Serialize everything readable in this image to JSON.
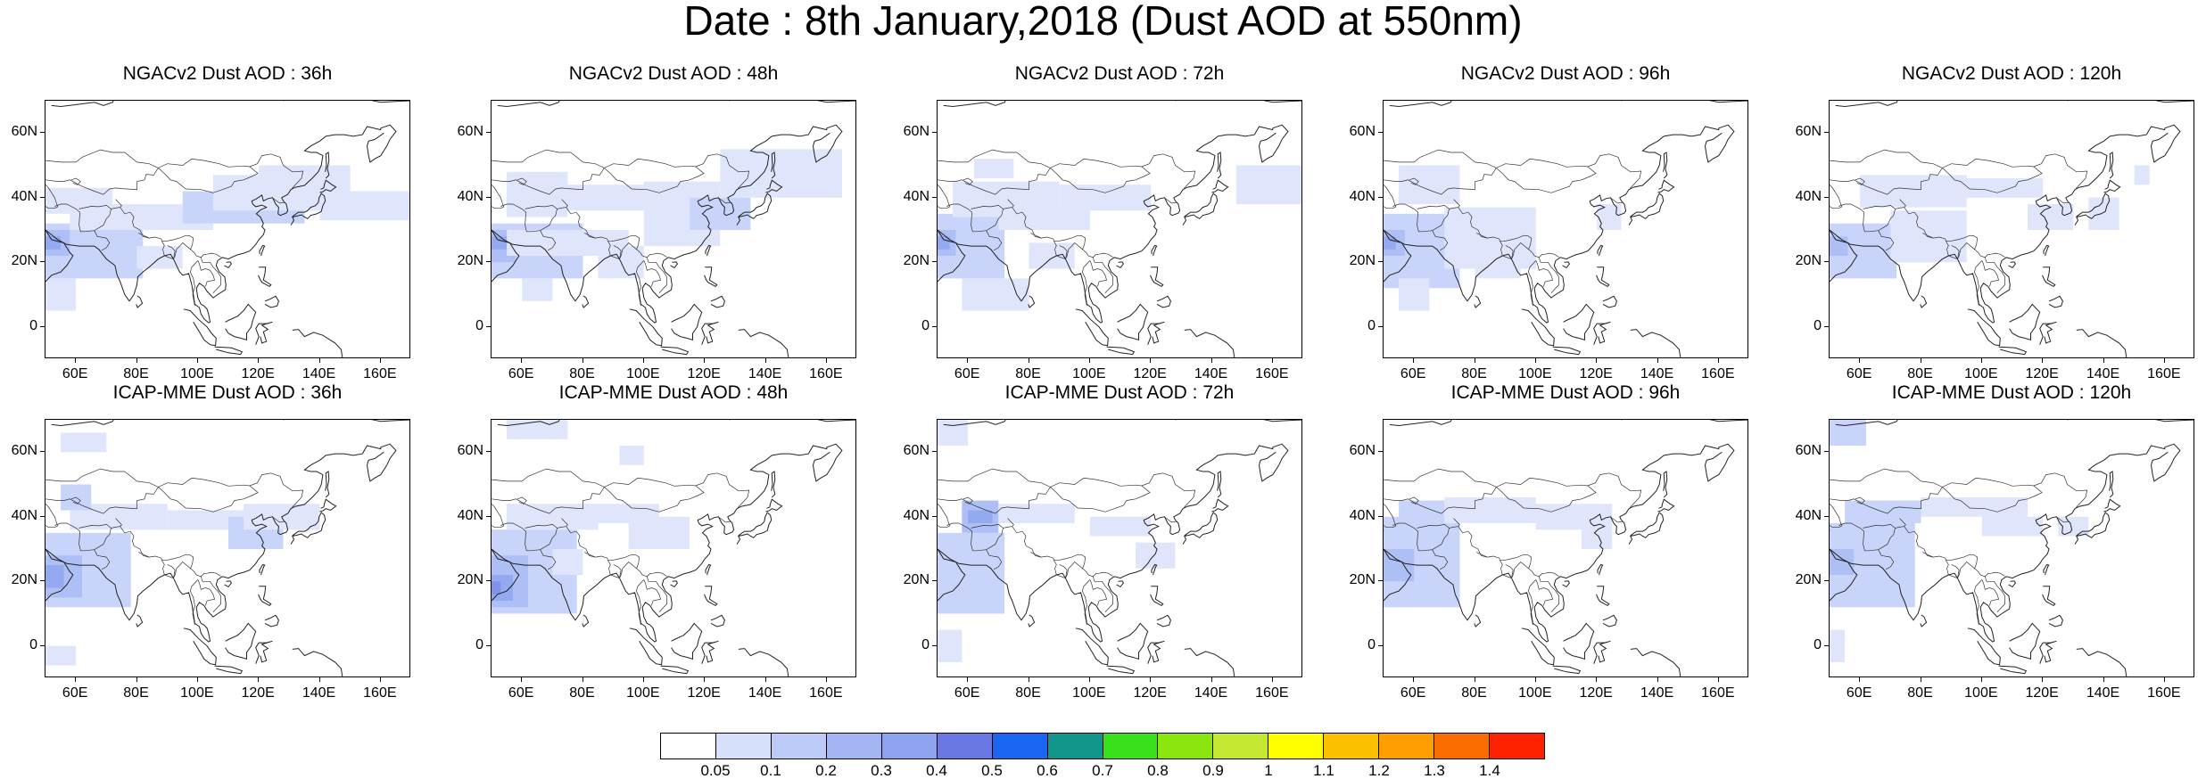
{
  "title": "Date : 8th January,2018 (Dust AOD at 550nm)",
  "panels": [
    {
      "title": "NGACv2 Dust AOD : 36h"
    },
    {
      "title": "NGACv2 Dust AOD : 48h"
    },
    {
      "title": "NGACv2 Dust AOD : 72h"
    },
    {
      "title": "NGACv2 Dust AOD : 96h"
    },
    {
      "title": "NGACv2 Dust AOD : 120h"
    },
    {
      "title": "ICAP-MME Dust AOD : 36h"
    },
    {
      "title": "ICAP-MME Dust AOD : 48h"
    },
    {
      "title": "ICAP-MME Dust AOD : 72h"
    },
    {
      "title": "ICAP-MME Dust AOD : 96h"
    },
    {
      "title": "ICAP-MME Dust AOD : 120h"
    }
  ],
  "lat_labels": [
    "60N",
    "40N",
    "20N",
    "0"
  ],
  "lon_labels": [
    "60E",
    "80E",
    "100E",
    "120E",
    "140E",
    "160E"
  ],
  "colorbar": {
    "labels": [
      "0.05",
      "0.1",
      "0.2",
      "0.3",
      "0.4",
      "0.5",
      "0.6",
      "0.7",
      "0.8",
      "0.9",
      "1",
      "1.1",
      "1.2",
      "1.3",
      "1.4"
    ],
    "colors": [
      "#ffffff",
      "#d6e0fb",
      "#bccbf7",
      "#a3b6f3",
      "#8ea3ef",
      "#6a78e6",
      "#1a66f0",
      "#12968c",
      "#39e01c",
      "#8ae60e",
      "#c5e830",
      "#ffff00",
      "#fdc001",
      "#fd9f01",
      "#fb6d00",
      "#ff2200"
    ]
  }
}
